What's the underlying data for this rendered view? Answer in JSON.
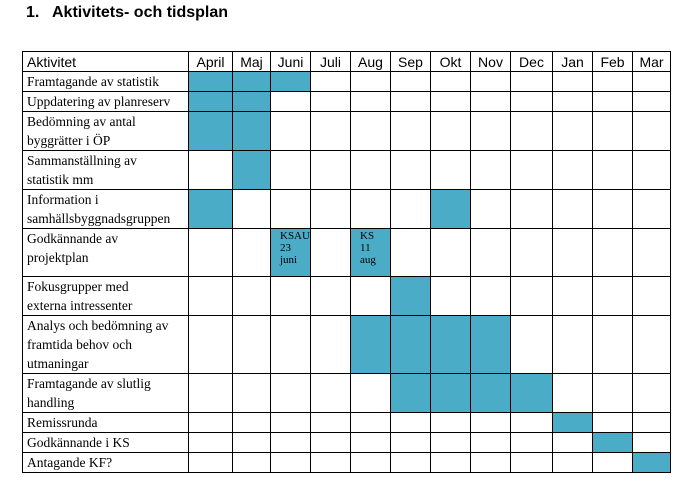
{
  "document": {
    "heading_number": "1.",
    "heading_text": "Aktivitets- och tidsplan"
  },
  "colors": {
    "bar_fill": "#4AACC6",
    "border": "#000000"
  },
  "table": {
    "activity_header": "Aktivitet",
    "months": [
      "April",
      "Maj",
      "Juni",
      "Juli",
      "Aug",
      "Sep",
      "Okt",
      "Nov",
      "Dec",
      "Jan",
      "Feb",
      "Mar"
    ],
    "rows": [
      {
        "label": [
          "Framtagande av statistik"
        ],
        "bars": [
          "April",
          "Maj",
          "Juni"
        ]
      },
      {
        "label": [
          "Uppdatering av planreserv"
        ],
        "bars": [
          "April",
          "Maj"
        ]
      },
      {
        "label": [
          "Bedömning av antal",
          "byggrätter i ÖP"
        ],
        "bars": [
          "April",
          "Maj"
        ]
      },
      {
        "label": [
          "Sammanställning av",
          "statistik mm"
        ],
        "bars": [
          "Maj"
        ]
      },
      {
        "label": [
          "Information i",
          "samhällsbyggnadsgruppen"
        ],
        "bars": [
          "April",
          "Okt"
        ]
      },
      {
        "label": [
          "Godkännande av",
          "projektplan"
        ],
        "bars": [
          "Juni",
          "Aug"
        ],
        "notes": {
          "Juni": "KSAU\n23\njuni",
          "Aug": "KS\n11\naug"
        }
      },
      {
        "label": [
          "Fokusgrupper med",
          "externa intressenter"
        ],
        "bars": [
          "Sep"
        ]
      },
      {
        "label": [
          "Analys och bedömning av",
          "framtida behov och",
          "utmaningar"
        ],
        "bars": [
          "Aug",
          "Sep",
          "Okt",
          "Nov"
        ]
      },
      {
        "label": [
          "Framtagande av slutlig",
          "handling"
        ],
        "bars": [
          "Sep",
          "Okt",
          "Nov",
          "Dec"
        ]
      },
      {
        "label": [
          "Remissrunda"
        ],
        "bars": [
          "Jan"
        ]
      },
      {
        "label": [
          "Godkännande i KS"
        ],
        "bars": [
          "Feb"
        ]
      },
      {
        "label": [
          "Antagande KF?"
        ],
        "bars": [
          "Mar"
        ]
      }
    ]
  }
}
